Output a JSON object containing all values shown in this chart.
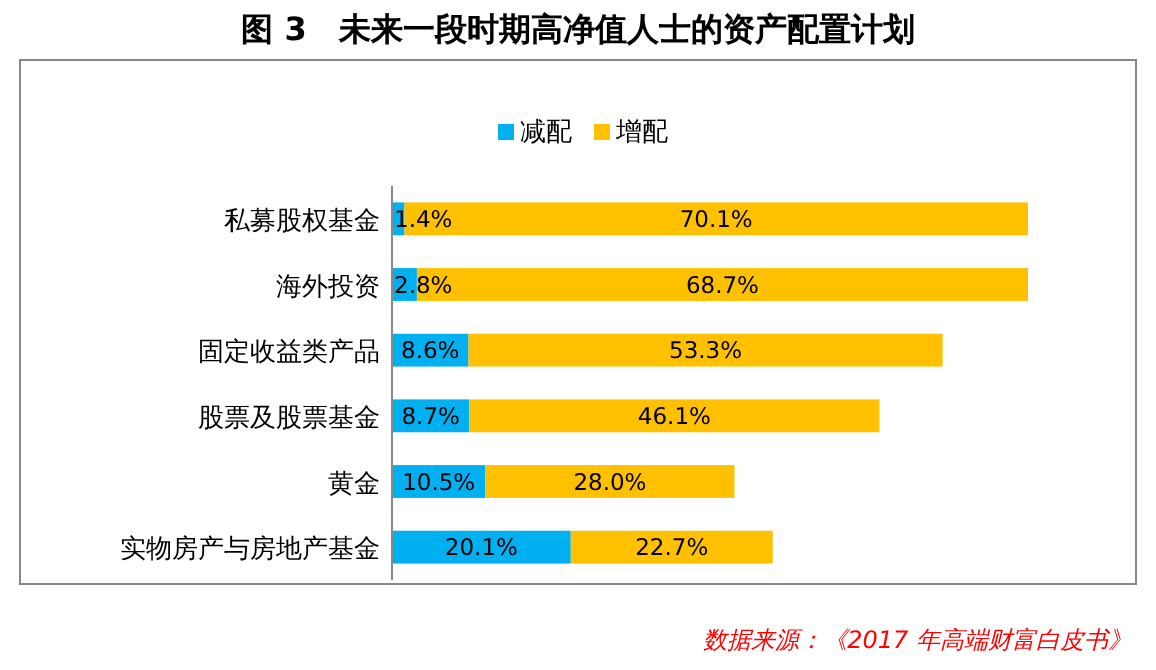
{
  "chart_data": {
    "type": "bar",
    "orientation": "horizontal",
    "stacked": true,
    "legend": "top",
    "title": "图 3　未来一段时期高净值人士的资产配置计划",
    "categories": [
      "私募股权基金",
      "海外投资",
      "固定收益类产品",
      "股票及股票基金",
      "黄金",
      "实物房产与房地产基金"
    ],
    "series": [
      {
        "name": "减配",
        "color": "#00b0f0",
        "values": [
          1.4,
          2.8,
          8.6,
          8.7,
          10.5,
          20.1
        ],
        "value_labels": [
          "1.4%",
          "2.8%",
          "8.6%",
          "8.7%",
          "10.5%",
          "20.1%"
        ]
      },
      {
        "name": "增配",
        "color": "#ffc000",
        "values": [
          70.1,
          68.7,
          53.3,
          46.1,
          28.0,
          22.7
        ],
        "value_labels": [
          "70.1%",
          "68.7%",
          "53.3%",
          "46.1%",
          "28.0%",
          "22.7%"
        ]
      }
    ],
    "annotations": [
      "数据来源：《2017 年高端财富白皮书》"
    ]
  }
}
